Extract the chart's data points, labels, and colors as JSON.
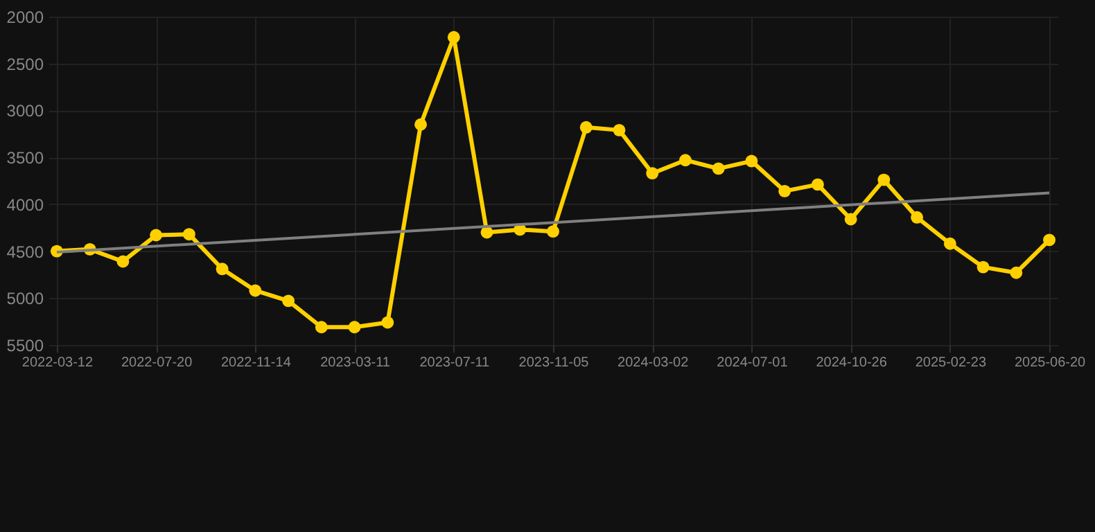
{
  "chart_data": {
    "type": "line",
    "categories": [
      "2022-03-12",
      null,
      null,
      "2022-07-20",
      null,
      null,
      "2022-11-14",
      null,
      null,
      "2023-03-11",
      null,
      null,
      "2023-07-11",
      null,
      null,
      "2023-11-05",
      null,
      null,
      "2024-03-02",
      null,
      null,
      "2024-07-01",
      null,
      null,
      "2024-10-26",
      null,
      null,
      "2025-02-23",
      null,
      null,
      "2025-06-20"
    ],
    "series": [
      {
        "color": "#ffd000",
        "marker": "circle",
        "values": [
          4500,
          4480,
          4610,
          4330,
          4320,
          4690,
          4920,
          5030,
          5310,
          5310,
          5260,
          3150,
          2220,
          4300,
          4270,
          4290,
          3180,
          3210,
          3670,
          3530,
          3620,
          3540,
          3860,
          3790,
          4160,
          3740,
          4140,
          4420,
          4670,
          4730,
          4380
        ]
      },
      {
        "type": "line",
        "color": "#808080",
        "marker": "none",
        "values": [
          4510,
          null,
          null,
          null,
          null,
          null,
          null,
          null,
          null,
          null,
          null,
          null,
          null,
          null,
          null,
          null,
          null,
          null,
          null,
          null,
          null,
          null,
          null,
          null,
          null,
          null,
          null,
          null,
          null,
          null,
          3880
        ]
      }
    ],
    "ylim": [
      5500,
      2000
    ],
    "yticks": [
      2000,
      2500,
      3000,
      3500,
      4000,
      4500,
      5000,
      5500
    ],
    "grid": true
  }
}
